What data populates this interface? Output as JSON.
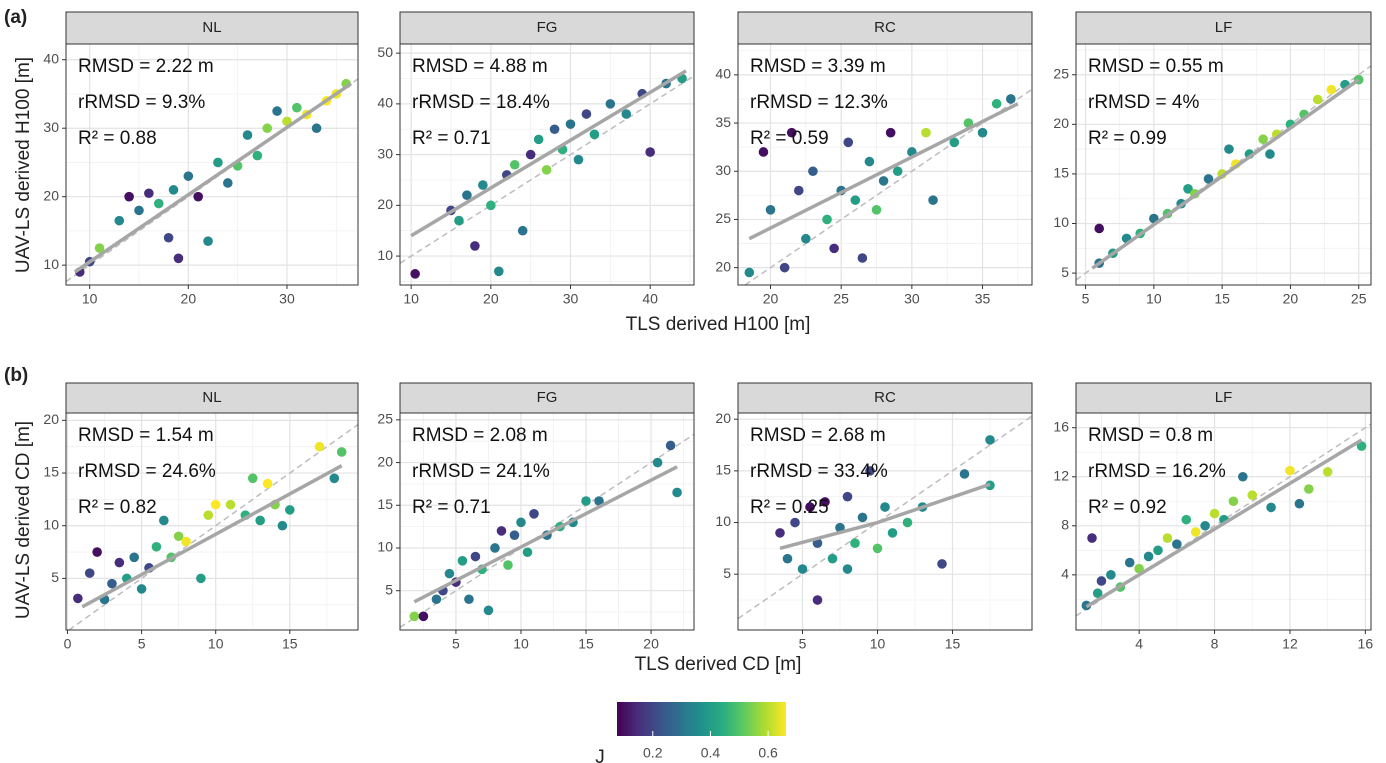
{
  "figure": {
    "row_labels": [
      "(a)",
      "(b)"
    ],
    "x_titles": [
      "TLS derived H100 [m]",
      "TLS derived CD [m]"
    ],
    "y_titles": [
      "UAV-LS derived H100 [m]",
      "UAV-LS derived CD [m]"
    ]
  },
  "colorbar": {
    "title": "J",
    "lim": [
      0.076,
      0.662
    ],
    "ticks": [
      0.2,
      0.4,
      0.6
    ],
    "colors": [
      "#440154",
      "#472d7b",
      "#3b528b",
      "#2c728e",
      "#21918c",
      "#28ae80",
      "#5ec962",
      "#addc30",
      "#fde725"
    ]
  },
  "chart_data": [
    {
      "type": "scatter",
      "strip": "NL",
      "stats": [
        "RMSD = 2.22 m",
        "rRMSD = 9.3%",
        "R² = 0.88"
      ],
      "xlim": [
        7.6,
        37.2
      ],
      "ylim": [
        7.1,
        42.3
      ],
      "xticks": [
        10,
        20,
        30
      ],
      "yticks": [
        10,
        20,
        30,
        40
      ],
      "grid": true,
      "identity_line": true,
      "fit_color": "#a6a6a6",
      "x": [
        9,
        10,
        11,
        13,
        14,
        15,
        16,
        17,
        18,
        18.5,
        19,
        20,
        21,
        22,
        23,
        24,
        25,
        26,
        27,
        28,
        29,
        30,
        31,
        32,
        33,
        34,
        35,
        36
      ],
      "y": [
        9,
        10.5,
        12.5,
        16.5,
        20,
        18,
        20.5,
        19,
        14,
        21,
        11,
        23,
        20,
        13.5,
        25,
        22,
        24.5,
        29,
        26,
        30,
        32.5,
        31,
        33,
        32,
        30,
        34,
        35,
        36.5
      ],
      "j": [
        0.15,
        0.2,
        0.55,
        0.35,
        0.1,
        0.3,
        0.15,
        0.45,
        0.2,
        0.35,
        0.15,
        0.3,
        0.1,
        0.35,
        0.4,
        0.3,
        0.5,
        0.35,
        0.45,
        0.55,
        0.3,
        0.6,
        0.5,
        0.65,
        0.3,
        0.7,
        0.65,
        0.55
      ],
      "fit": {
        "x": [
          8.5,
          36.5
        ],
        "y": [
          9,
          36.5
        ]
      }
    },
    {
      "type": "scatter",
      "strip": "FG",
      "stats": [
        "RMSD = 4.88 m",
        "rRMSD = 18.4%",
        "R² = 0.71"
      ],
      "xlim": [
        8.6,
        45.5
      ],
      "ylim": [
        4.3,
        51.8
      ],
      "xticks": [
        10,
        20,
        30,
        40
      ],
      "yticks": [
        10,
        20,
        30,
        40,
        50
      ],
      "grid": true,
      "identity_line": true,
      "fit_color": "#a6a6a6",
      "x": [
        10.5,
        15,
        16,
        17,
        18,
        19,
        20,
        21,
        22,
        23,
        24,
        25,
        26,
        27,
        28,
        29,
        30,
        31,
        32,
        33,
        35,
        37,
        39,
        40,
        42,
        44
      ],
      "y": [
        6.5,
        19,
        17,
        22,
        12,
        24,
        20,
        7,
        26,
        28,
        15,
        30,
        33,
        27,
        35,
        31,
        36,
        29,
        38,
        34,
        40,
        38,
        42,
        30.5,
        44,
        45
      ],
      "j": [
        0.1,
        0.2,
        0.4,
        0.3,
        0.15,
        0.35,
        0.45,
        0.35,
        0.2,
        0.5,
        0.3,
        0.15,
        0.4,
        0.55,
        0.25,
        0.45,
        0.3,
        0.35,
        0.2,
        0.4,
        0.3,
        0.35,
        0.2,
        0.15,
        0.3,
        0.4
      ],
      "fit": {
        "x": [
          10,
          44.5
        ],
        "y": [
          14,
          46.5
        ]
      }
    },
    {
      "type": "scatter",
      "strip": "RC",
      "stats": [
        "RMSD = 3.39 m",
        "rRMSD = 12.3%",
        "R² = 0.59"
      ],
      "xlim": [
        17.7,
        38.5
      ],
      "ylim": [
        18.2,
        43.2
      ],
      "xticks": [
        20,
        25,
        30,
        35
      ],
      "yticks": [
        20,
        25,
        30,
        35,
        40
      ],
      "grid": true,
      "identity_line": true,
      "fit_color": "#a6a6a6",
      "x": [
        18.5,
        19.5,
        20,
        21,
        21.5,
        22,
        22.5,
        23,
        24,
        24.5,
        25,
        25.5,
        26,
        26.5,
        27,
        27.5,
        28,
        28.5,
        29,
        30,
        31,
        31.5,
        33,
        34,
        35,
        36,
        37
      ],
      "y": [
        19.5,
        32,
        26,
        20,
        34,
        28,
        23,
        30,
        25,
        22,
        28,
        33,
        27,
        21,
        31,
        26,
        29,
        34,
        30,
        32,
        34,
        27,
        33,
        35,
        34,
        37,
        37.5
      ],
      "j": [
        0.35,
        0.1,
        0.3,
        0.2,
        0.1,
        0.2,
        0.35,
        0.25,
        0.45,
        0.15,
        0.3,
        0.2,
        0.4,
        0.2,
        0.35,
        0.5,
        0.3,
        0.1,
        0.4,
        0.35,
        0.6,
        0.3,
        0.4,
        0.5,
        0.35,
        0.45,
        0.3
      ],
      "fit": {
        "x": [
          18.5,
          37.5
        ],
        "y": [
          23,
          37
        ]
      }
    },
    {
      "type": "scatter",
      "strip": "LF",
      "stats": [
        "RMSD = 0.55 m",
        "rRMSD = 4%",
        "R² = 0.99"
      ],
      "xlim": [
        4.3,
        25.9
      ],
      "ylim": [
        3.8,
        28.1
      ],
      "xticks": [
        5,
        10,
        15,
        20,
        25
      ],
      "yticks": [
        5,
        10,
        15,
        20,
        25
      ],
      "grid": true,
      "identity_line": true,
      "fit_color": "#a6a6a6",
      "x": [
        6,
        6,
        7,
        8,
        9,
        10,
        11,
        12,
        12.5,
        13,
        14,
        15,
        15.5,
        16,
        17,
        18,
        18.5,
        19,
        20,
        21,
        22,
        23,
        24,
        25
      ],
      "y": [
        9.5,
        6,
        7,
        8.5,
        9,
        10.5,
        11,
        12,
        13.5,
        13,
        14.5,
        15,
        17.5,
        16,
        17,
        18.5,
        17,
        19,
        20,
        21,
        22.5,
        23.5,
        24,
        24.5
      ],
      "j": [
        0.1,
        0.3,
        0.4,
        0.35,
        0.45,
        0.3,
        0.5,
        0.35,
        0.4,
        0.55,
        0.3,
        0.6,
        0.35,
        0.65,
        0.4,
        0.55,
        0.35,
        0.6,
        0.45,
        0.5,
        0.6,
        0.65,
        0.4,
        0.5
      ],
      "fit": {
        "x": [
          5.5,
          25
        ],
        "y": [
          5.5,
          24.5
        ]
      }
    },
    {
      "type": "scatter",
      "strip": "NL",
      "stats": [
        "RMSD = 1.54 m",
        "rRMSD = 24.6%",
        "R² = 0.82"
      ],
      "xlim": [
        -0.1,
        19.6
      ],
      "ylim": [
        0.1,
        20.7
      ],
      "xticks": [
        0,
        5,
        10,
        15
      ],
      "yticks": [
        5,
        10,
        15,
        20
      ],
      "grid": true,
      "identity_line": true,
      "fit_color": "#a6a6a6",
      "x": [
        0.7,
        1.5,
        2,
        2.5,
        3,
        3.5,
        4,
        4.5,
        5,
        5.5,
        6,
        6.5,
        7,
        7.5,
        8,
        9,
        9.5,
        10,
        11,
        12,
        12.5,
        13,
        13.5,
        14,
        14.5,
        15,
        17,
        18,
        18.5
      ],
      "y": [
        3.1,
        5.5,
        7.5,
        3,
        4.5,
        6.5,
        5,
        7,
        4,
        6,
        8,
        10.5,
        7,
        9,
        8.5,
        5,
        11,
        12,
        12,
        11,
        14.5,
        10.5,
        14,
        12,
        10,
        11.5,
        17.5,
        14.5,
        17
      ],
      "j": [
        0.15,
        0.2,
        0.1,
        0.3,
        0.25,
        0.15,
        0.4,
        0.3,
        0.35,
        0.2,
        0.45,
        0.35,
        0.5,
        0.55,
        0.65,
        0.4,
        0.6,
        0.7,
        0.6,
        0.45,
        0.5,
        0.4,
        0.7,
        0.55,
        0.35,
        0.4,
        0.65,
        0.35,
        0.5
      ],
      "fit": {
        "x": [
          1,
          18.5
        ],
        "y": [
          2.3,
          15.7
        ]
      }
    },
    {
      "type": "scatter",
      "strip": "FG",
      "stats": [
        "RMSD = 2.08 m",
        "rRMSD = 24.1%",
        "R² = 0.71"
      ],
      "xlim": [
        0.7,
        23.3
      ],
      "ylim": [
        0.4,
        25.8
      ],
      "xticks": [
        5,
        10,
        15,
        20
      ],
      "yticks": [
        5,
        10,
        15,
        20,
        25
      ],
      "grid": true,
      "identity_line": true,
      "fit_color": "#a6a6a6",
      "x": [
        1.8,
        2.5,
        3.5,
        4,
        4.5,
        5,
        5.5,
        6,
        6.5,
        7,
        7.5,
        8,
        8.5,
        9,
        9.5,
        10,
        10.5,
        11,
        12,
        13,
        14,
        15,
        16,
        20.5,
        21.5,
        22
      ],
      "y": [
        2,
        2,
        4,
        5,
        7,
        6,
        8.5,
        4,
        9,
        7.5,
        2.7,
        10,
        12,
        8,
        11.5,
        13,
        9.5,
        14,
        11.5,
        12.5,
        13,
        15.5,
        15.5,
        20,
        22,
        16.5
      ],
      "j": [
        0.55,
        0.1,
        0.3,
        0.2,
        0.35,
        0.15,
        0.4,
        0.3,
        0.2,
        0.45,
        0.35,
        0.3,
        0.15,
        0.5,
        0.25,
        0.35,
        0.4,
        0.2,
        0.3,
        0.45,
        0.35,
        0.4,
        0.3,
        0.35,
        0.25,
        0.35
      ],
      "fit": {
        "x": [
          1.8,
          22
        ],
        "y": [
          3.7,
          19.5
        ]
      }
    },
    {
      "type": "scatter",
      "strip": "RC",
      "stats": [
        "RMSD = 2.68 m",
        "rRMSD = 33.4%",
        "R² = 0.25"
      ],
      "xlim": [
        0.7,
        20.3
      ],
      "ylim": [
        -0.4,
        20.6
      ],
      "xticks": [
        5,
        10,
        15
      ],
      "yticks": [
        5,
        10,
        15,
        20
      ],
      "grid": true,
      "identity_line": true,
      "fit_color": "#a6a6a6",
      "x": [
        3.5,
        4,
        4.5,
        5,
        5.5,
        6,
        6,
        6.5,
        7,
        7.5,
        8,
        8,
        8.5,
        9,
        9.5,
        10,
        10.5,
        11,
        12,
        13,
        14.3,
        15.8,
        17.5,
        17.5
      ],
      "y": [
        9,
        6.5,
        10,
        5.5,
        11.5,
        2.5,
        8,
        12,
        6.5,
        9.5,
        12.5,
        5.5,
        8,
        10.5,
        15,
        7.5,
        11.5,
        9,
        10,
        11.5,
        6,
        14.7,
        18,
        13.6
      ],
      "j": [
        0.15,
        0.3,
        0.2,
        0.35,
        0.1,
        0.15,
        0.25,
        0.1,
        0.4,
        0.3,
        0.2,
        0.35,
        0.45,
        0.3,
        0.2,
        0.5,
        0.35,
        0.4,
        0.45,
        0.35,
        0.2,
        0.3,
        0.35,
        0.4
      ],
      "fit": {
        "x": [
          3.5,
          10,
          17.5
        ],
        "y": [
          7.5,
          10,
          13.7
        ]
      }
    },
    {
      "type": "scatter",
      "strip": "LF",
      "stats": [
        "RMSD = 0.8 m",
        "rRMSD = 16.2%",
        "R² = 0.92"
      ],
      "xlim": [
        0.65,
        16.3
      ],
      "ylim": [
        -0.5,
        17.2
      ],
      "xticks": [
        4,
        8,
        12,
        16
      ],
      "yticks": [
        4,
        8,
        12,
        16
      ],
      "grid": true,
      "identity_line": true,
      "fit_color": "#a6a6a6",
      "x": [
        1.2,
        1.5,
        1.8,
        2,
        2.5,
        3,
        3.5,
        4,
        4.5,
        5,
        5.5,
        6,
        6.5,
        7,
        7.5,
        8,
        8.5,
        9,
        9.5,
        10,
        11,
        12,
        12.5,
        13,
        14,
        15.8
      ],
      "y": [
        1.5,
        7,
        2.5,
        3.5,
        4,
        3,
        5,
        4.5,
        5.5,
        6,
        7,
        6.5,
        8.5,
        7.5,
        8,
        9,
        8.5,
        10,
        12,
        10.5,
        9.5,
        12.5,
        9.8,
        11,
        12.4,
        14.5
      ],
      "j": [
        0.3,
        0.15,
        0.4,
        0.2,
        0.35,
        0.5,
        0.3,
        0.55,
        0.35,
        0.4,
        0.6,
        0.3,
        0.45,
        0.65,
        0.35,
        0.6,
        0.4,
        0.55,
        0.3,
        0.6,
        0.35,
        0.65,
        0.3,
        0.55,
        0.6,
        0.45
      ],
      "fit": {
        "x": [
          1.2,
          15.8
        ],
        "y": [
          1.4,
          15
        ]
      }
    }
  ]
}
